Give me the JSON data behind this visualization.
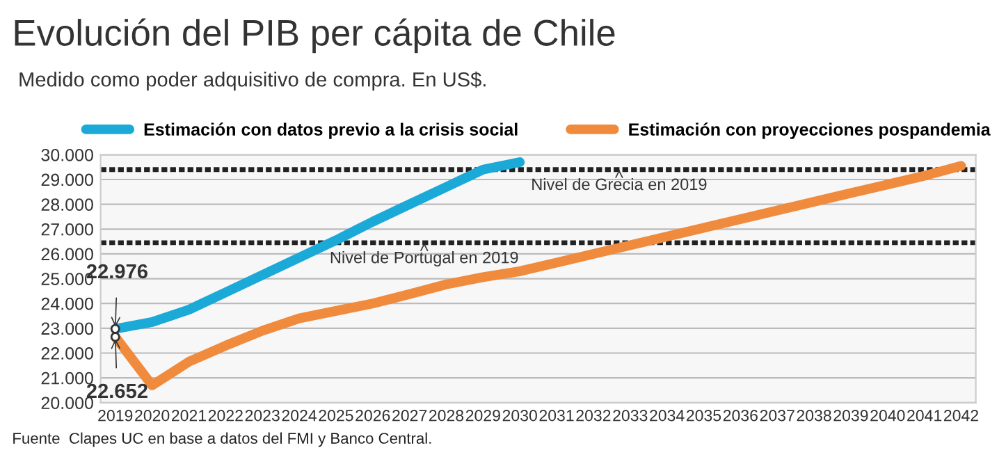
{
  "chart_data": {
    "type": "line",
    "title": "Evolución del PIB per cápita de Chile",
    "subtitle": "Medido como poder adquisitivo de compra. En US$.",
    "x": [
      2019,
      2020,
      2021,
      2022,
      2023,
      2024,
      2025,
      2026,
      2027,
      2028,
      2029,
      2030,
      2031,
      2032,
      2033,
      2034,
      2035,
      2036,
      2037,
      2038,
      2039,
      2040,
      2041,
      2042
    ],
    "series": [
      {
        "name": "Estimación con datos previo a la crisis social",
        "color": "#1ba9d8",
        "x": [
          2019,
          2020,
          2021,
          2022,
          2023,
          2024,
          2025,
          2026,
          2027,
          2028,
          2029,
          2030
        ],
        "values": [
          22976,
          23250,
          23750,
          24450,
          25150,
          25850,
          26550,
          27300,
          28000,
          28700,
          29400,
          29700
        ]
      },
      {
        "name": "Estimación con proyecciones pospandemia",
        "color": "#f08a3c",
        "values": [
          22652,
          20700,
          21650,
          22300,
          22900,
          23400,
          23700,
          24000,
          24380,
          24770,
          25060,
          25300,
          25650,
          26000,
          26350,
          26700,
          27050,
          27400,
          27750,
          28100,
          28450,
          28800,
          29150,
          29550
        ]
      }
    ],
    "xlim": [
      2018.6,
      2042.4
    ],
    "xticks": [
      2019,
      2020,
      2021,
      2022,
      2023,
      2024,
      2025,
      2026,
      2027,
      2028,
      2029,
      2030,
      2031,
      2032,
      2033,
      2034,
      2035,
      2036,
      2037,
      2038,
      2039,
      2040,
      2041,
      2042
    ],
    "ylim": [
      20000,
      30000
    ],
    "yticks": [
      {
        "value": 20000,
        "label": "20.000"
      },
      {
        "value": 21000,
        "label": "21.000"
      },
      {
        "value": 22000,
        "label": "22.000"
      },
      {
        "value": 23000,
        "label": "23.000"
      },
      {
        "value": 24000,
        "label": "24.000"
      },
      {
        "value": 25000,
        "label": "25.000"
      },
      {
        "value": 26000,
        "label": "26.000"
      },
      {
        "value": 27000,
        "label": "27.000"
      },
      {
        "value": 28000,
        "label": "28.000"
      },
      {
        "value": 29000,
        "label": "29.000"
      },
      {
        "value": 30000,
        "label": "30.000"
      }
    ],
    "ref_lines": [
      {
        "axis": "y",
        "value": 29400,
        "label": "Nivel de Grecia en 2019",
        "color": "#222222",
        "line_style": "dashed"
      },
      {
        "axis": "y",
        "value": 26450,
        "label": "Nivel de Portugal en 2019",
        "color": "#222222",
        "line_style": "dashed"
      }
    ],
    "annotations": [
      {
        "text": "22.976",
        "x": 2019,
        "y": 22976
      },
      {
        "text": "22.652",
        "x": 2019,
        "y": 22652
      },
      "Fuente  Clapes UC en base a datos del FMI y Banco Central."
    ],
    "grid": "y",
    "legend": "top",
    "marker": "none",
    "line_style": "solid"
  }
}
